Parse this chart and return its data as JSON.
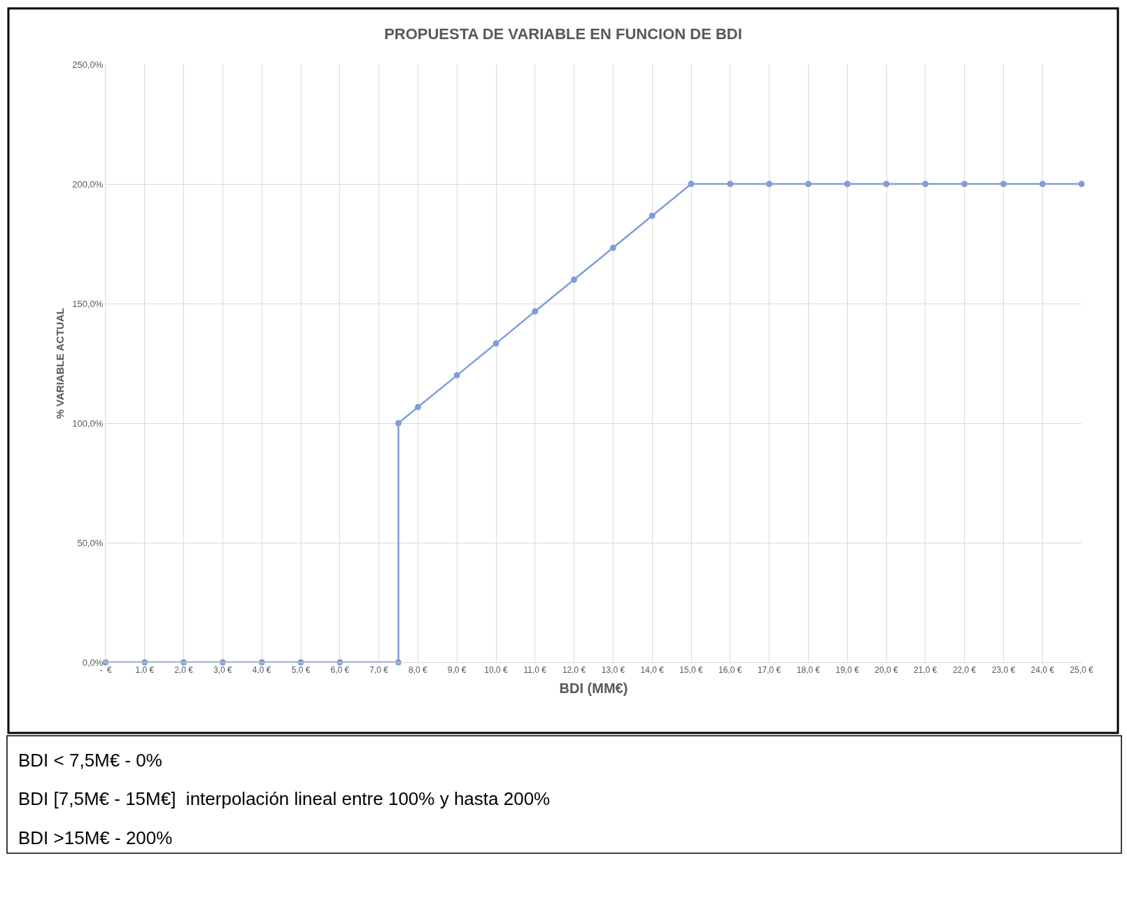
{
  "chart_data": {
    "type": "line",
    "title": "PROPUESTA DE VARIABLE EN FUNCION DE BDI",
    "xlabel": "BDI (MM€)",
    "ylabel": "% VARIABLE ACTUAL",
    "x": [
      0,
      1,
      2,
      3,
      4,
      5,
      6,
      7.5,
      7.5,
      8,
      9,
      10,
      11,
      12,
      13,
      14,
      15,
      16,
      17,
      18,
      19,
      20,
      21,
      22,
      23,
      24,
      25
    ],
    "series": [
      {
        "color": "#7f9ed8",
        "values": [
          0,
          0,
          0,
          0,
          0,
          0,
          0,
          0,
          100,
          106.7,
          120,
          133.3,
          146.7,
          160,
          173.3,
          186.7,
          200,
          200,
          200,
          200,
          200,
          200,
          200,
          200,
          200,
          200,
          200
        ]
      }
    ],
    "xlim": [
      0,
      25
    ],
    "ylim": [
      0,
      250
    ],
    "xticks": [
      {
        "value": 0,
        "label": "-  €"
      },
      {
        "value": 1,
        "label": "1,0 €"
      },
      {
        "value": 2,
        "label": "2,0 €"
      },
      {
        "value": 3,
        "label": "3,0 €"
      },
      {
        "value": 4,
        "label": "4,0 €"
      },
      {
        "value": 5,
        "label": "5,0 €"
      },
      {
        "value": 6,
        "label": "6,0 €"
      },
      {
        "value": 7,
        "label": "7,0 €"
      },
      {
        "value": 8,
        "label": "8,0 €"
      },
      {
        "value": 9,
        "label": "9,0 €"
      },
      {
        "value": 10,
        "label": "10,0 €"
      },
      {
        "value": 11,
        "label": "11,0 €"
      },
      {
        "value": 12,
        "label": "12,0 €"
      },
      {
        "value": 13,
        "label": "13,0 €"
      },
      {
        "value": 14,
        "label": "14,0 €"
      },
      {
        "value": 15,
        "label": "15,0 €"
      },
      {
        "value": 16,
        "label": "16,0 €"
      },
      {
        "value": 17,
        "label": "17,0 €"
      },
      {
        "value": 18,
        "label": "18,0 €"
      },
      {
        "value": 19,
        "label": "19,0 €"
      },
      {
        "value": 20,
        "label": "20,0 €"
      },
      {
        "value": 21,
        "label": "21,0 €"
      },
      {
        "value": 22,
        "label": "22,0 €"
      },
      {
        "value": 23,
        "label": "23,0 €"
      },
      {
        "value": 24,
        "label": "24,0 €"
      },
      {
        "value": 25,
        "label": "25,0 €"
      }
    ],
    "yticks": [
      {
        "value": 0,
        "label": "0,0%"
      },
      {
        "value": 50,
        "label": "50,0%"
      },
      {
        "value": 100,
        "label": "100,0%"
      },
      {
        "value": 150,
        "label": "150,0%"
      },
      {
        "value": 200,
        "label": "200,0%"
      },
      {
        "value": 250,
        "label": "250,0%"
      }
    ],
    "grid": true,
    "marker": "circle",
    "line_style": "solid",
    "annotations": [
      "BDI < 7,5M€ - 0%",
      "BDI [7,5M€ - 15M€]  interpolación lineal entre 100% y hasta 200%",
      "BDI >15M€ - 200%"
    ]
  }
}
